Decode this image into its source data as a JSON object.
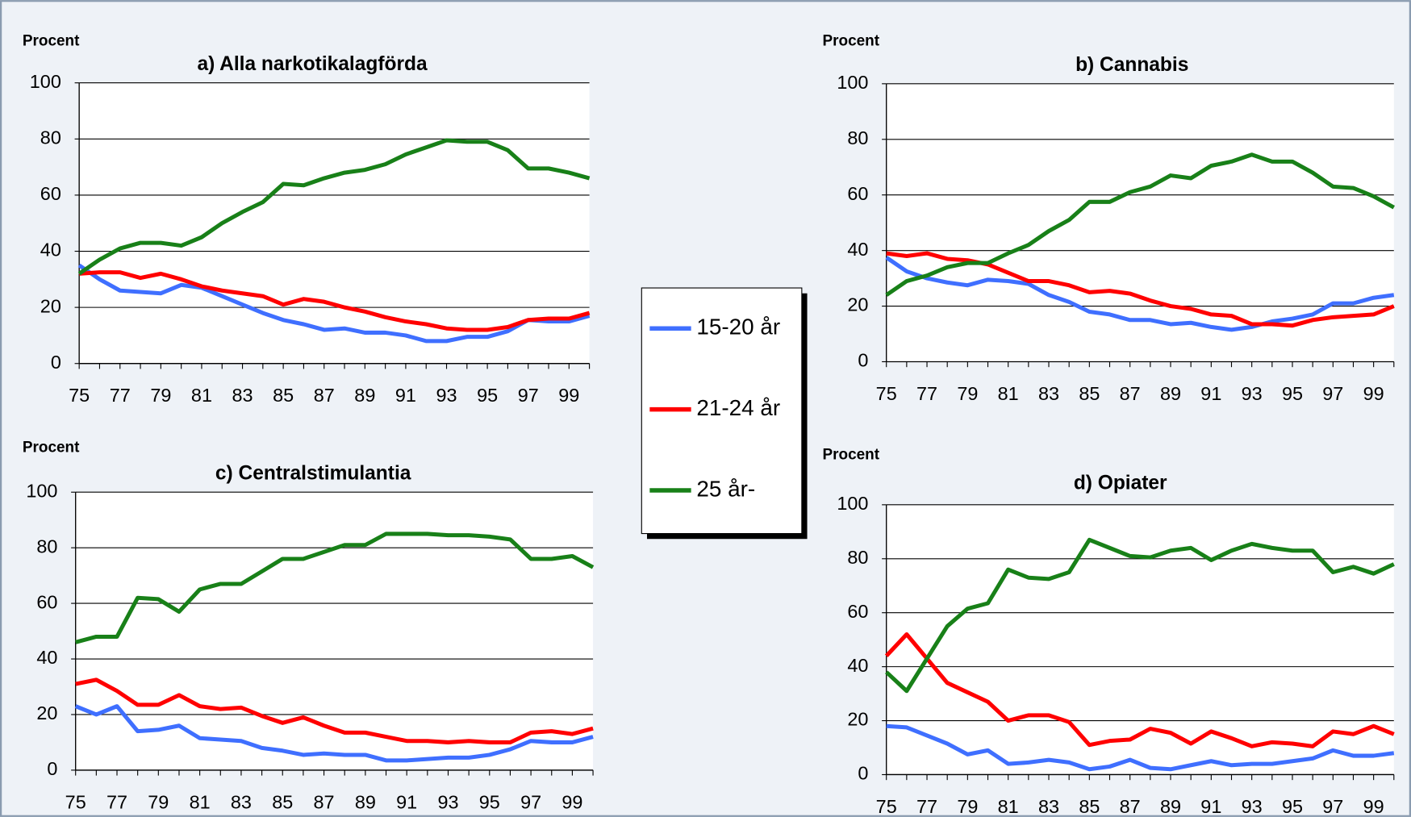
{
  "chart_data": [
    {
      "type": "line",
      "title": "a) Alla narkotikalagförda",
      "y_label": "Procent",
      "categories": [
        "75",
        null,
        "77",
        null,
        "79",
        null,
        "81",
        null,
        "83",
        null,
        "85",
        null,
        "87",
        null,
        "89",
        null,
        "91",
        null,
        "93",
        null,
        "95",
        null,
        "97",
        null,
        "99",
        null
      ],
      "ylim": [
        0,
        100
      ],
      "yticks": [
        0,
        20,
        40,
        60,
        80,
        100
      ],
      "grid": true,
      "series": [
        {
          "name": "15-20 år",
          "color": "#3f6fff",
          "values": [
            35,
            30,
            26,
            25.5,
            25,
            28,
            27,
            24,
            21,
            18,
            15.5,
            14,
            12,
            12.5,
            11,
            11,
            10,
            8,
            8,
            9.5,
            9.5,
            11.5,
            15.5,
            15,
            15,
            17
          ]
        },
        {
          "name": "21-24 år",
          "color": "#ff0000",
          "values": [
            32,
            32.5,
            32.5,
            30.5,
            32,
            30,
            27.5,
            26,
            25,
            24,
            21,
            23,
            22,
            20,
            18.5,
            16.5,
            15,
            14,
            12.5,
            12,
            12,
            13,
            15.5,
            16,
            16,
            18
          ]
        },
        {
          "name": "25 år-",
          "color": "#188018",
          "values": [
            32,
            37,
            41,
            43,
            43,
            42,
            45,
            50,
            54,
            57.5,
            64,
            63.5,
            66,
            68,
            69,
            71,
            74.5,
            77,
            79.5,
            79,
            79,
            76,
            69.5,
            69.5,
            68,
            66
          ]
        }
      ]
    },
    {
      "type": "line",
      "title": "b) Cannabis",
      "y_label": "Procent",
      "categories": [
        "75",
        null,
        "77",
        null,
        "79",
        null,
        "81",
        null,
        "83",
        null,
        "85",
        null,
        "87",
        null,
        "89",
        null,
        "91",
        null,
        "93",
        null,
        "95",
        null,
        "97",
        null,
        "99",
        null
      ],
      "ylim": [
        0,
        100
      ],
      "yticks": [
        0,
        20,
        40,
        60,
        80,
        100
      ],
      "grid": true,
      "series": [
        {
          "name": "15-20 år",
          "color": "#3f6fff",
          "values": [
            37.5,
            32.5,
            30,
            28.5,
            27.5,
            29.5,
            29,
            28,
            24,
            21.5,
            18,
            17,
            15,
            15,
            13.5,
            14,
            12.5,
            11.5,
            12.5,
            14.5,
            15.5,
            17,
            21,
            21,
            23,
            24
          ]
        },
        {
          "name": "21-24 år",
          "color": "#ff0000",
          "values": [
            39,
            38,
            39,
            37,
            36.5,
            35,
            32,
            29,
            29,
            27.5,
            25,
            25.5,
            24.5,
            22,
            20,
            19,
            17,
            16.5,
            13.5,
            13.5,
            13,
            15,
            16,
            16.5,
            17,
            20
          ]
        },
        {
          "name": "25 år-",
          "color": "#188018",
          "values": [
            24,
            29,
            31,
            34,
            35.5,
            35.5,
            39,
            42,
            47,
            51,
            57.5,
            57.5,
            61,
            63,
            67,
            66,
            70.5,
            72,
            74.5,
            72,
            72,
            68,
            63,
            62.5,
            59.5,
            55.5
          ]
        }
      ]
    },
    {
      "type": "line",
      "title": "c) Centralstimulantia",
      "y_label": "Procent",
      "categories": [
        "75",
        null,
        "77",
        null,
        "79",
        null,
        "81",
        null,
        "83",
        null,
        "85",
        null,
        "87",
        null,
        "89",
        null,
        "91",
        null,
        "93",
        null,
        "95",
        null,
        "97",
        null,
        "99",
        null
      ],
      "ylim": [
        0,
        100
      ],
      "yticks": [
        0,
        20,
        40,
        60,
        80,
        100
      ],
      "grid": true,
      "series": [
        {
          "name": "15-20 år",
          "color": "#3f6fff",
          "values": [
            23,
            20,
            23,
            14,
            14.5,
            16,
            11.5,
            11,
            10.5,
            8,
            7,
            5.5,
            6,
            5.5,
            5.5,
            3.5,
            3.5,
            4,
            4.5,
            4.5,
            5.5,
            7.5,
            10.5,
            10,
            10,
            12
          ]
        },
        {
          "name": "21-24 år",
          "color": "#ff0000",
          "values": [
            31,
            32.5,
            28.5,
            23.5,
            23.5,
            27,
            23,
            22,
            22.5,
            19.5,
            17,
            19,
            16,
            13.5,
            13.5,
            12,
            10.5,
            10.5,
            10,
            10.5,
            10,
            10,
            13.5,
            14,
            13,
            15
          ]
        },
        {
          "name": "25 år-",
          "color": "#188018",
          "values": [
            46,
            48,
            48,
            62,
            61.5,
            57,
            65,
            67,
            67,
            71.5,
            76,
            76,
            78.5,
            81,
            81,
            85,
            85,
            85,
            84.5,
            84.5,
            84,
            83,
            76,
            76,
            77,
            73
          ]
        }
      ]
    },
    {
      "type": "line",
      "title": "d) Opiater",
      "y_label": "Procent",
      "categories": [
        "75",
        null,
        "77",
        null,
        "79",
        null,
        "81",
        null,
        "83",
        null,
        "85",
        null,
        "87",
        null,
        "89",
        null,
        "91",
        null,
        "93",
        null,
        "95",
        null,
        "97",
        null,
        "99",
        null
      ],
      "ylim": [
        0,
        100
      ],
      "yticks": [
        0,
        20,
        40,
        60,
        80,
        100
      ],
      "grid": true,
      "series": [
        {
          "name": "15-20 år",
          "color": "#3f6fff",
          "values": [
            18,
            17.5,
            14.5,
            11.5,
            7.5,
            9,
            4,
            4.5,
            5.5,
            4.5,
            2,
            3,
            5.5,
            2.5,
            2,
            3.5,
            5,
            3.5,
            4,
            4,
            5,
            6,
            9,
            7,
            7,
            8
          ]
        },
        {
          "name": "21-24 år",
          "color": "#ff0000",
          "values": [
            44,
            52,
            43,
            34,
            30.5,
            27,
            20,
            22,
            22,
            19.5,
            11,
            12.5,
            13,
            17,
            15.5,
            11.5,
            16,
            13.5,
            10.5,
            12,
            11.5,
            10.5,
            16,
            15,
            18,
            15
          ]
        },
        {
          "name": "25 år-",
          "color": "#188018",
          "values": [
            38,
            31,
            43,
            55,
            61.5,
            63.5,
            76,
            73,
            72.5,
            75,
            87,
            84,
            81,
            80.5,
            83,
            84,
            79.5,
            83,
            85.5,
            84,
            83,
            83,
            75,
            77,
            74.5,
            78
          ]
        }
      ]
    }
  ]
}
